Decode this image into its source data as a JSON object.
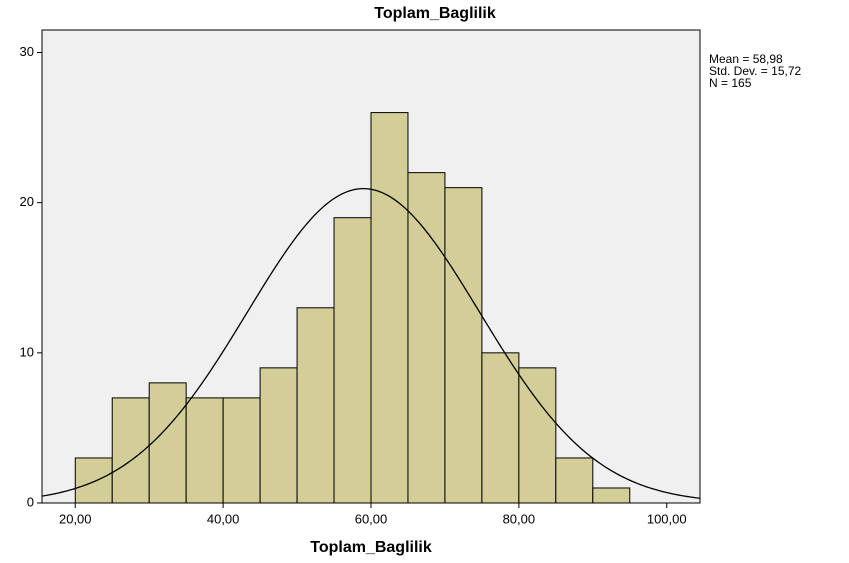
{
  "chart_data": {
    "type": "histogram",
    "title": "Toplam_Baglilik",
    "x_label": "Toplam_Baglilik",
    "bins": [
      20,
      25,
      30,
      35,
      40,
      45,
      50,
      55,
      60,
      65,
      70,
      75,
      80,
      85,
      90,
      95
    ],
    "counts": [
      3,
      7,
      8,
      7,
      7,
      9,
      13,
      19,
      26,
      22,
      21,
      10,
      9,
      3,
      1
    ],
    "color": "#d3ce97",
    "xlim": [
      15.5,
      104.5
    ],
    "ylim": [
      0,
      31.5
    ],
    "xticks": [
      {
        "value": 20,
        "label": "20,00"
      },
      {
        "value": 40,
        "label": "40,00"
      },
      {
        "value": 60,
        "label": "60,00"
      },
      {
        "value": 80,
        "label": "80,00"
      },
      {
        "value": 100,
        "label": "100,00"
      }
    ],
    "yticks": [
      0,
      10,
      20,
      30
    ],
    "normal_curve": {
      "mean": 58.98,
      "sd": 15.72,
      "n": 165
    },
    "annotations": [
      "Mean = 58,98",
      "Std. Dev. = 15,72",
      "N = 165"
    ]
  }
}
